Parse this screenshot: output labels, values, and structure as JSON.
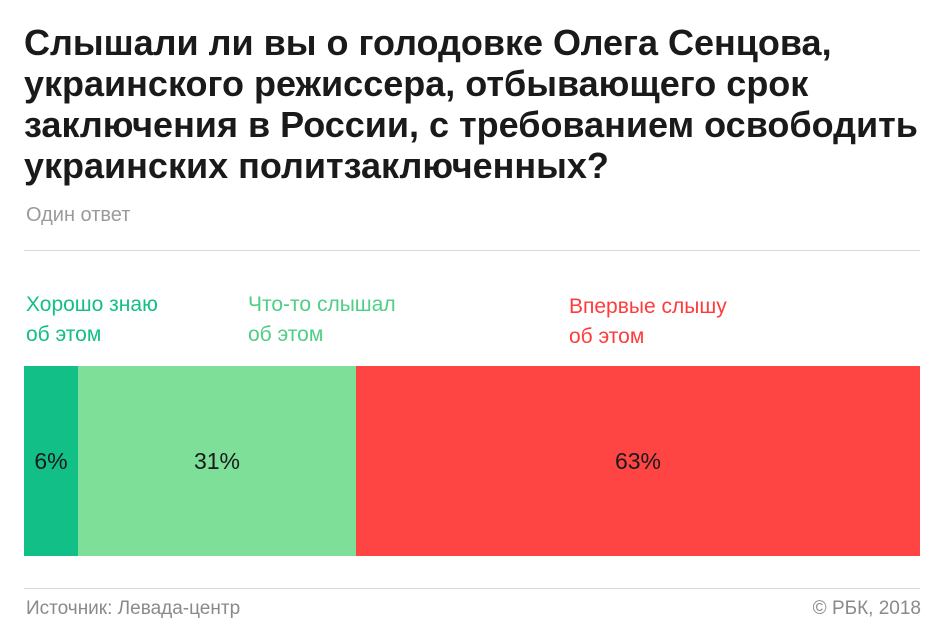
{
  "title": "Слышали ли вы о голодовке Олега Сенцова, украинского режиссера, отбывающего срок заключения в России, с требованием освободить украинских политзаключенных?",
  "subtitle": "Один ответ",
  "source": "Источник: Левада-центр",
  "copyright": "© РБК, 2018",
  "chart_data": {
    "type": "bar",
    "orientation": "horizontal-stacked-100",
    "categories": [
      "Хорошо знаю об этом",
      "Что-то слышал об этом",
      "Впервые слышу об этом"
    ],
    "values": [
      6,
      31,
      63
    ],
    "value_labels": [
      "6%",
      "31%",
      "63%"
    ],
    "legend_lines": [
      [
        "Хорошо знаю",
        "об этом"
      ],
      [
        "Что-то слышал",
        "об этом"
      ],
      [
        "Впервые слышу",
        "об этом"
      ]
    ],
    "colors": [
      "#12bf86",
      "#7ddf98",
      "#ff4444"
    ],
    "label_colors": [
      "#12bf86",
      "#4fce86",
      "#ff3b3b"
    ],
    "xlim": [
      0,
      100
    ]
  }
}
